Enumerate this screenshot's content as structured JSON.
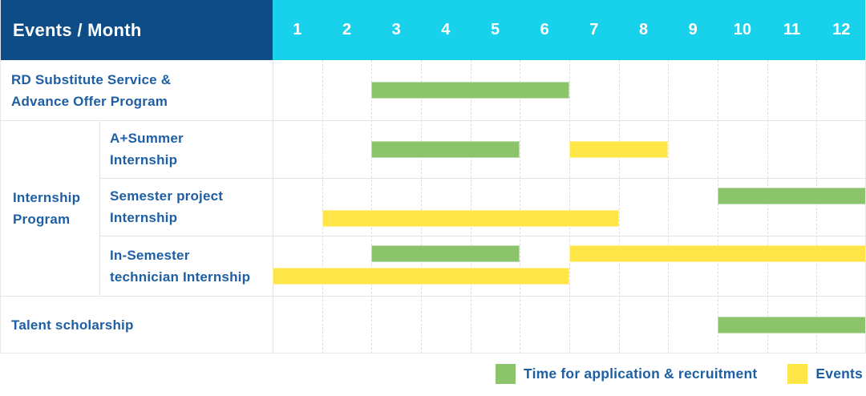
{
  "header": {
    "title": "Events / Month"
  },
  "colors": {
    "header_bg": "#0d4c86",
    "header_text": "#ffffff",
    "month_band_bg": "#18d1ea",
    "month_text": "#ffffff",
    "label_text": "#1e5fa4",
    "application_green": "#8bc46b",
    "event_yellow": "#ffe646",
    "grid_line": "#e4e4e4"
  },
  "legend": {
    "items": [
      {
        "name": "application-recruitment",
        "label": "Time for application & recruitment",
        "color": "#8bc46b"
      },
      {
        "name": "events",
        "label": "Events",
        "color": "#ffe646"
      }
    ]
  },
  "chart_data": {
    "type": "bar",
    "subtype": "gantt",
    "title": "Events / Month",
    "xlabel": "Month",
    "month_labels": [
      "1",
      "2",
      "3",
      "4",
      "5",
      "6",
      "7",
      "8",
      "9",
      "10",
      "11",
      "12"
    ],
    "x_range": [
      1,
      12
    ],
    "grid": true,
    "legend_position": "bottom-right",
    "series_legend": {
      "green": "Time for application & recruitment",
      "yellow": "Events"
    },
    "group_label": "Internship Program",
    "group_label_lines": [
      "Internship",
      "Program"
    ],
    "rows": [
      {
        "label": "RD Substitute Service & Advance Offer Program",
        "label_lines": [
          "RD Substitute Service &",
          "Advance Offer Program"
        ],
        "group": null,
        "bars": [
          {
            "kind": "application",
            "color": "green",
            "start_month": 3,
            "end_month": 6,
            "lane": "center"
          }
        ]
      },
      {
        "label": "A+Summer Internship",
        "label_lines": [
          "A+Summer",
          "Internship"
        ],
        "group": "Internship Program",
        "bars": [
          {
            "kind": "application",
            "color": "green",
            "start_month": 3,
            "end_month": 5,
            "lane": "center"
          },
          {
            "kind": "event",
            "color": "yellow",
            "start_month": 7,
            "end_month": 8,
            "lane": "center"
          }
        ]
      },
      {
        "label": "Semester project Internship",
        "label_lines": [
          "Semester project",
          "Internship"
        ],
        "group": "Internship Program",
        "bars": [
          {
            "kind": "application",
            "color": "green",
            "start_month": 10,
            "end_month": 12,
            "lane": "upper"
          },
          {
            "kind": "event",
            "color": "yellow",
            "start_month": 2,
            "end_month": 7,
            "lane": "lower"
          }
        ]
      },
      {
        "label": "In-Semester technician Internship",
        "label_lines": [
          "In-Semester",
          "technician Internship"
        ],
        "group": "Internship Program",
        "bars": [
          {
            "kind": "application",
            "color": "green",
            "start_month": 3,
            "end_month": 5,
            "lane": "upper"
          },
          {
            "kind": "event",
            "color": "yellow",
            "start_month": 7,
            "end_month": 12,
            "lane": "upper"
          },
          {
            "kind": "event",
            "color": "yellow",
            "start_month": 1,
            "end_month": 6,
            "lane": "lower"
          }
        ]
      },
      {
        "label": "Talent scholarship",
        "label_lines": [
          "Talent scholarship"
        ],
        "group": null,
        "bars": [
          {
            "kind": "application",
            "color": "green",
            "start_month": 10,
            "end_month": 12,
            "lane": "center"
          }
        ]
      }
    ]
  }
}
